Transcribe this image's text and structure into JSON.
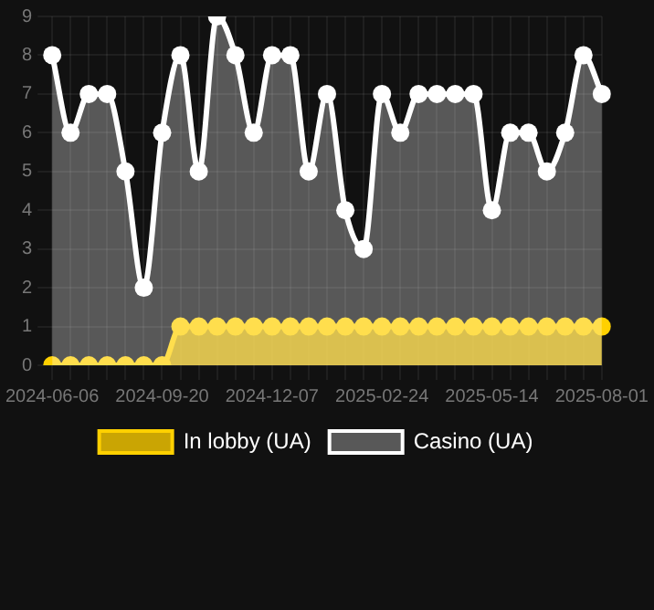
{
  "chart_data": {
    "type": "area",
    "categories": [
      "2024-06-06",
      null,
      null,
      null,
      null,
      null,
      "2024-09-20",
      null,
      null,
      null,
      null,
      null,
      "2024-12-07",
      null,
      null,
      null,
      null,
      null,
      "2025-02-24",
      null,
      null,
      null,
      null,
      null,
      "2025-05-14",
      null,
      null,
      null,
      null,
      null,
      "2025-08-01"
    ],
    "series": [
      {
        "name": "In lobby (UA)",
        "color": "#ffd000",
        "values": [
          0,
          0,
          0,
          0,
          0,
          0,
          0,
          1,
          1,
          1,
          1,
          1,
          1,
          1,
          1,
          1,
          1,
          1,
          1,
          1,
          1,
          1,
          1,
          1,
          1,
          1,
          1,
          1,
          1,
          1,
          1
        ]
      },
      {
        "name": "Casino (UA)",
        "color": "#ffffff",
        "values": [
          8,
          6,
          7,
          7,
          5,
          2,
          6,
          8,
          5,
          9,
          8,
          6,
          8,
          8,
          5,
          7,
          4,
          3,
          7,
          6,
          7,
          7,
          7,
          7,
          4,
          6,
          6,
          5,
          6,
          8,
          7
        ]
      }
    ],
    "ylim": [
      0,
      9
    ],
    "yticks": [
      0,
      1,
      2,
      3,
      4,
      5,
      6,
      7,
      8,
      9
    ],
    "grid": true,
    "legend": "bottom",
    "marker": "circle"
  }
}
